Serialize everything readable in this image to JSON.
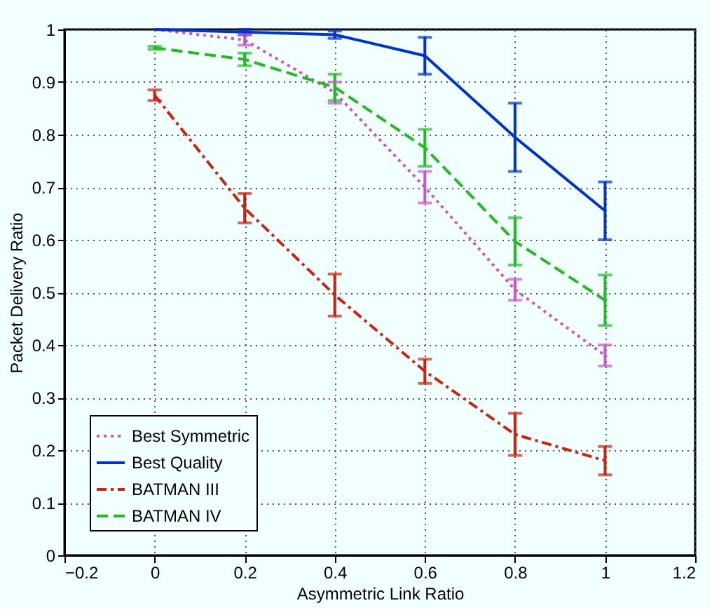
{
  "chart_data": {
    "type": "line",
    "xlabel": "Asymmetric Link Ratio",
    "ylabel": "Packet Delivery Ratio",
    "x": [
      0,
      0.2,
      0.4,
      0.6,
      0.8,
      1
    ],
    "series": [
      {
        "name": "Best Symmetric",
        "color": "#cc55cc",
        "line_style": "dotted",
        "values": [
          1.0,
          0.98,
          0.88,
          0.7,
          0.505,
          0.38
        ],
        "errors": [
          null,
          0.01,
          0.02,
          0.03,
          0.02,
          0.02
        ]
      },
      {
        "name": "Best Quality",
        "color": "#0033cc",
        "line_style": "solid",
        "values": [
          1.0,
          0.995,
          0.99,
          0.95,
          0.795,
          0.655
        ],
        "errors": [
          null,
          0.005,
          0.007,
          0.035,
          0.065,
          0.055
        ]
      },
      {
        "name": "BATMAN III",
        "color": "#cc2211",
        "line_style": "dashdot",
        "values": [
          0.875,
          0.66,
          0.495,
          0.35,
          0.23,
          0.18
        ],
        "errors": [
          0.01,
          0.028,
          0.04,
          0.023,
          0.04,
          0.027
        ]
      },
      {
        "name": "BATMAN IV",
        "color": "#22bb22",
        "line_style": "dashed",
        "values": [
          0.965,
          0.943,
          0.89,
          0.775,
          0.597,
          0.485
        ],
        "errors": [
          0.003,
          0.012,
          0.025,
          0.035,
          0.045,
          0.048
        ]
      }
    ],
    "xlim": [
      -0.2,
      1.2
    ],
    "xticks": [
      -0.2,
      0,
      0.2,
      0.4,
      0.6,
      0.8,
      1,
      1.2
    ],
    "ylim": [
      0,
      1
    ],
    "yticks": [
      0,
      0.1,
      0.2,
      0.3,
      0.4,
      0.5,
      0.6,
      0.7,
      0.8,
      0.9,
      1
    ],
    "grid": true,
    "legend": "bottom left",
    "marker": "none"
  }
}
